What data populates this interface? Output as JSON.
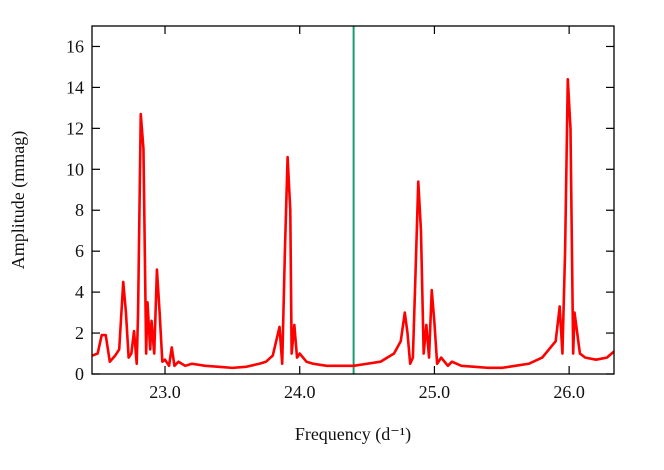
{
  "chart_data": {
    "type": "line",
    "xlabel": "Frequency (d⁻¹)",
    "ylabel": "Amplitude (mmag)",
    "xlim": [
      22.458,
      26.333
    ],
    "ylim": [
      0,
      17
    ],
    "xticks": [
      {
        "value": 23,
        "label": "23.0"
      },
      {
        "value": 24,
        "label": "24.0"
      },
      {
        "value": 25,
        "label": "25.0"
      },
      {
        "value": 26,
        "label": "26.0"
      }
    ],
    "yticks": [
      0,
      2,
      4,
      6,
      8,
      10,
      12,
      14,
      16
    ],
    "vline": {
      "x": 24.4,
      "color": "#1a9b72"
    },
    "series": [
      {
        "color": "#ff0000",
        "x": [
          22.46,
          22.5,
          22.53,
          22.56,
          22.59,
          22.63,
          22.66,
          22.69,
          22.71,
          22.73,
          22.75,
          22.77,
          22.79,
          22.8,
          22.82,
          22.84,
          22.86,
          22.87,
          22.89,
          22.9,
          22.92,
          22.94,
          22.96,
          22.98,
          23.0,
          23.03,
          23.05,
          23.07,
          23.1,
          23.15,
          23.2,
          23.3,
          23.4,
          23.5,
          23.6,
          23.7,
          23.75,
          23.8,
          23.85,
          23.87,
          23.89,
          23.91,
          23.93,
          23.94,
          23.96,
          23.98,
          24.0,
          24.05,
          24.1,
          24.2,
          24.3,
          24.4,
          24.5,
          24.6,
          24.7,
          24.75,
          24.78,
          24.8,
          24.82,
          24.84,
          24.86,
          24.88,
          24.9,
          24.92,
          24.94,
          24.96,
          24.98,
          25.0,
          25.02,
          25.05,
          25.1,
          25.13,
          25.2,
          25.3,
          25.4,
          25.5,
          25.6,
          25.7,
          25.8,
          25.85,
          25.9,
          25.93,
          25.95,
          25.97,
          25.99,
          26.01,
          26.03,
          26.04,
          26.06,
          26.08,
          26.12,
          26.2,
          26.28,
          26.333
        ],
        "values": [
          0.9,
          1.0,
          1.9,
          1.9,
          0.6,
          0.9,
          1.2,
          4.5,
          3.0,
          0.8,
          1.0,
          2.1,
          0.5,
          3.0,
          12.7,
          11.0,
          1.0,
          3.5,
          1.2,
          2.6,
          1.0,
          5.1,
          3.0,
          0.6,
          0.7,
          0.4,
          1.3,
          0.4,
          0.6,
          0.4,
          0.5,
          0.4,
          0.35,
          0.3,
          0.35,
          0.5,
          0.6,
          0.9,
          2.3,
          0.5,
          6.0,
          10.6,
          8.0,
          1.0,
          2.4,
          0.8,
          1.0,
          0.6,
          0.5,
          0.4,
          0.4,
          0.4,
          0.5,
          0.6,
          1.0,
          1.6,
          3.0,
          2.0,
          0.5,
          0.8,
          5.0,
          9.4,
          7.0,
          1.0,
          2.4,
          0.8,
          4.1,
          2.5,
          0.5,
          0.8,
          0.4,
          0.6,
          0.4,
          0.35,
          0.3,
          0.3,
          0.4,
          0.5,
          0.8,
          1.2,
          1.6,
          3.3,
          1.0,
          6.0,
          14.4,
          12.0,
          1.0,
          3.0,
          2.0,
          1.0,
          0.8,
          0.7,
          0.8,
          1.1
        ]
      }
    ]
  }
}
